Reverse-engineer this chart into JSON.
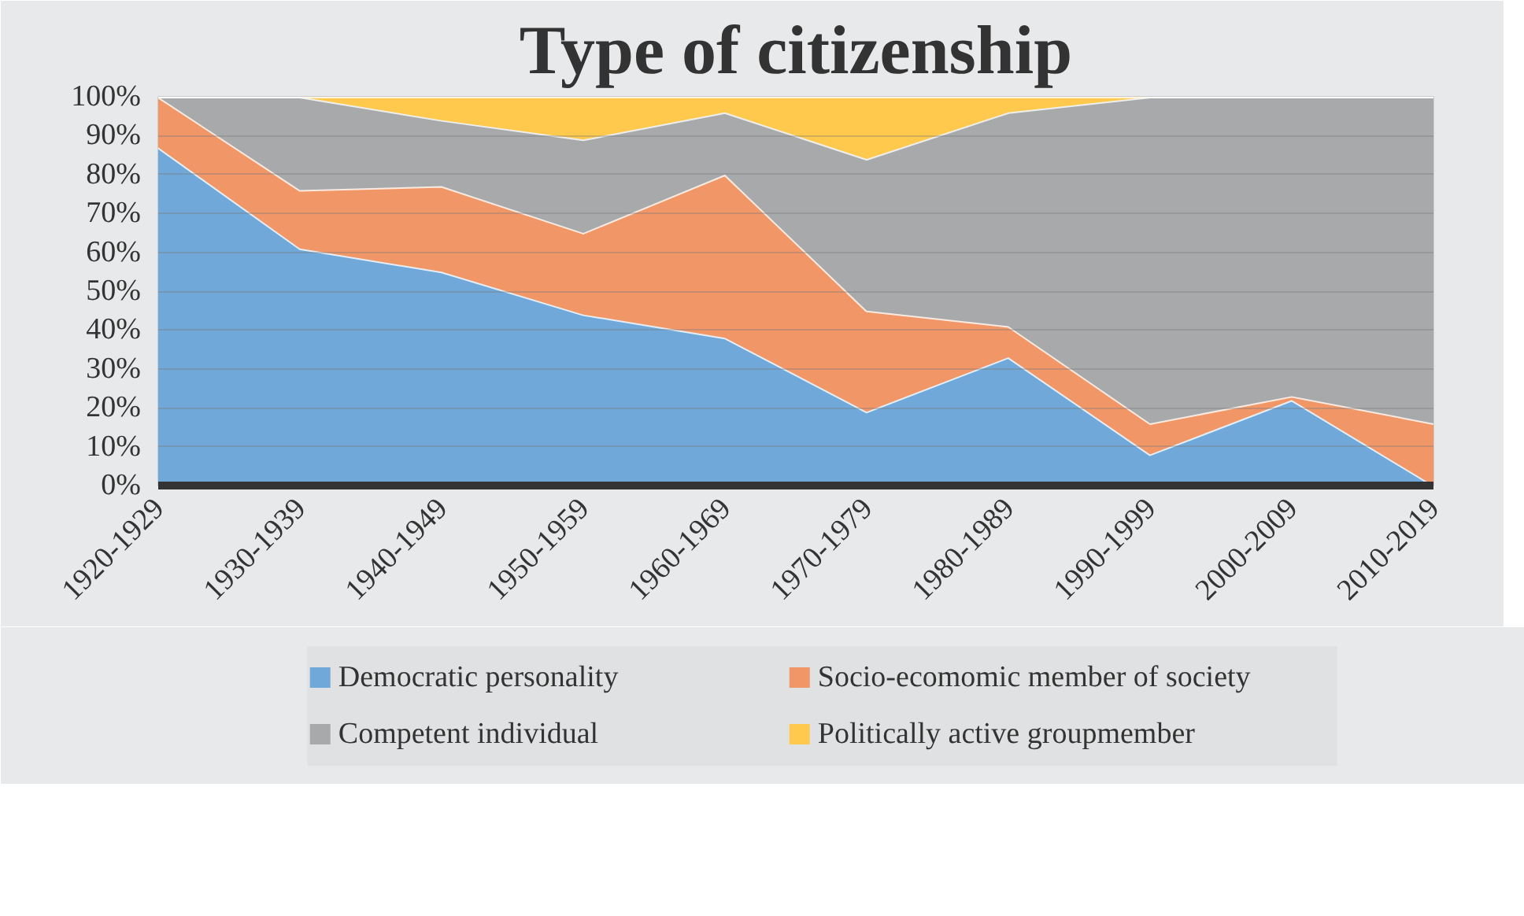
{
  "chart_data": {
    "type": "area",
    "title": "Type of citizenship",
    "stacked": true,
    "categories": [
      "1920-1929",
      "1930-1939",
      "1940-1949",
      "1950-1959",
      "1960-1969",
      "1970-1979",
      "1980-1989",
      "1990-1999",
      "2000-2009",
      "2010-2019"
    ],
    "series": [
      {
        "name": "Democratic personality",
        "color": "#6fa8d9",
        "values": [
          87,
          61,
          55,
          44,
          38,
          19,
          33,
          8,
          22,
          0
        ]
      },
      {
        "name": "Socio-ecomomic member of society",
        "color": "#f19767",
        "values": [
          13,
          15,
          22,
          21,
          42,
          26,
          8,
          8,
          1,
          16
        ]
      },
      {
        "name": "Competent individual",
        "color": "#a7a9ab",
        "values": [
          0,
          24,
          17,
          24,
          16,
          39,
          55,
          84,
          77,
          84
        ]
      },
      {
        "name": "Politically active groupmember",
        "color": "#fec94c",
        "values": [
          0,
          0,
          6,
          11,
          4,
          16,
          4,
          0,
          0,
          0
        ]
      }
    ],
    "ylim": [
      0,
      100
    ],
    "yticks": [
      {
        "value": 0,
        "label": "0%"
      },
      {
        "value": 10,
        "label": "10%"
      },
      {
        "value": 20,
        "label": "20%"
      },
      {
        "value": 30,
        "label": "30%"
      },
      {
        "value": 40,
        "label": "40%"
      },
      {
        "value": 50,
        "label": "50%"
      },
      {
        "value": 60,
        "label": "60%"
      },
      {
        "value": 70,
        "label": "70%"
      },
      {
        "value": 80,
        "label": "80%"
      },
      {
        "value": 90,
        "label": "90%"
      },
      {
        "value": 100,
        "label": "100%"
      }
    ],
    "grid": "y",
    "legend": "bottom"
  }
}
